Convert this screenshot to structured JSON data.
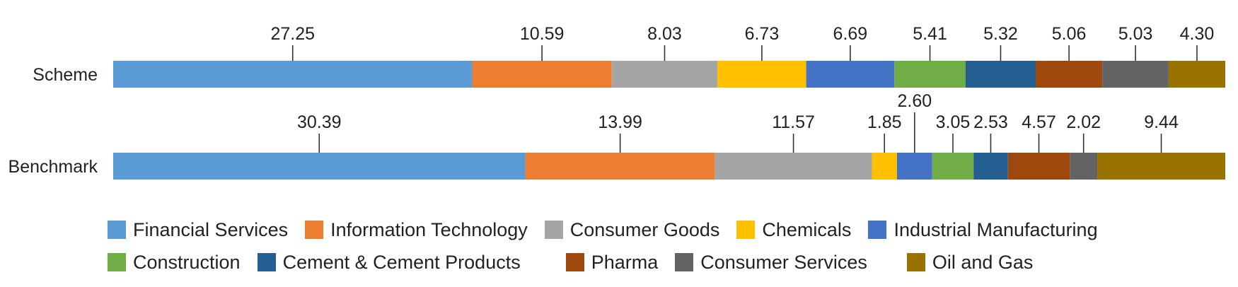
{
  "chart_data": {
    "type": "bar",
    "orientation": "horizontal",
    "stacked": true,
    "normalized_100": true,
    "categories": [
      "Scheme",
      "Benchmark"
    ],
    "series": [
      {
        "name": "Financial Services",
        "color": "#5B9BD5",
        "values": [
          27.25,
          30.39
        ]
      },
      {
        "name": "Information Technology",
        "color": "#ED7D31",
        "values": [
          10.59,
          13.99
        ]
      },
      {
        "name": "Consumer Goods",
        "color": "#A5A5A5",
        "values": [
          8.03,
          11.57
        ]
      },
      {
        "name": "Chemicals",
        "color": "#FFC000",
        "values": [
          6.73,
          1.85
        ]
      },
      {
        "name": "Industrial Manufacturing",
        "color": "#4472C4",
        "values": [
          6.69,
          2.6
        ]
      },
      {
        "name": "Construction",
        "color": "#70AD47",
        "values": [
          5.41,
          3.05
        ]
      },
      {
        "name": "Cement & Cement Products",
        "color": "#255E91",
        "values": [
          5.32,
          2.53
        ]
      },
      {
        "name": "Pharma",
        "color": "#9E480E",
        "values": [
          5.06,
          4.57
        ]
      },
      {
        "name": "Consumer Services",
        "color": "#636363",
        "values": [
          5.03,
          2.02
        ]
      },
      {
        "name": "Oil and Gas",
        "color": "#997300",
        "values": [
          4.3,
          9.44
        ]
      }
    ],
    "data_labels": {
      "Scheme": [
        "27.25",
        "10.59",
        "8.03",
        "6.73",
        "6.69",
        "5.41",
        "5.32",
        "5.06",
        "5.03",
        "4.30"
      ],
      "Benchmark": [
        "30.39",
        "13.99",
        "11.57",
        "1.85",
        "2.60",
        "3.05",
        "2.53",
        "4.57",
        "2.02",
        "9.44"
      ]
    },
    "legend_position": "bottom",
    "grid": false,
    "title": "",
    "xlabel": "",
    "ylabel": ""
  }
}
